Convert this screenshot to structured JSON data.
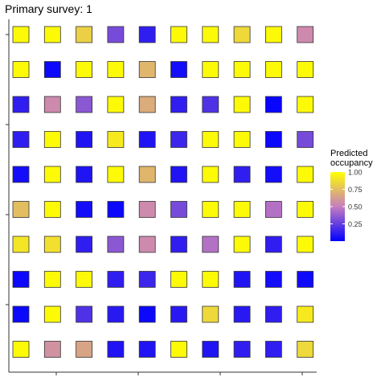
{
  "title": "Primary survey: 1",
  "chart_data": {
    "type": "heatmap",
    "title": "Primary survey: 1",
    "xlabel": "",
    "ylabel": "",
    "x_tick_labels": [],
    "y_tick_labels": [],
    "grid": false,
    "rows": 10,
    "cols": 10,
    "values": [
      [
        0.98,
        0.98,
        0.82,
        0.3,
        0.12,
        0.98,
        0.98,
        0.85,
        0.98,
        0.55
      ],
      [
        0.98,
        0.03,
        0.98,
        0.98,
        0.72,
        0.05,
        0.98,
        0.98,
        0.98,
        0.98
      ],
      [
        0.12,
        0.55,
        0.35,
        0.98,
        0.68,
        0.12,
        0.2,
        0.98,
        0.02,
        0.98
      ],
      [
        0.12,
        0.98,
        0.08,
        0.92,
        0.08,
        0.15,
        0.98,
        0.98,
        0.03,
        0.3
      ],
      [
        0.05,
        0.98,
        0.08,
        0.98,
        0.72,
        0.08,
        0.98,
        0.12,
        0.05,
        0.98
      ],
      [
        0.75,
        0.98,
        0.05,
        0.03,
        0.55,
        0.3,
        0.98,
        0.98,
        0.45,
        0.98
      ],
      [
        0.9,
        0.88,
        0.12,
        0.35,
        0.55,
        0.12,
        0.45,
        0.98,
        0.12,
        0.98
      ],
      [
        0.03,
        0.98,
        0.98,
        0.12,
        0.15,
        0.98,
        0.98,
        0.08,
        0.05,
        0.04
      ],
      [
        0.03,
        0.98,
        0.2,
        0.1,
        0.03,
        0.1,
        0.85,
        0.1,
        0.12,
        0.92
      ],
      [
        0.98,
        0.58,
        0.65,
        0.08,
        0.08,
        0.98,
        0.08,
        0.12,
        0.12,
        0.85
      ]
    ],
    "colorbar": {
      "title": "Predicted\noccupancy",
      "range": [
        0,
        1
      ],
      "ticks": [
        0.25,
        0.5,
        0.75,
        1.0
      ],
      "tick_labels": [
        "0.25",
        "0.50",
        "0.75",
        "1.00"
      ],
      "colors": {
        "low": "#0000ff",
        "mid": "#c77dc0",
        "high": "#ffff00"
      },
      "position": "right"
    },
    "legend_placement": "right"
  }
}
